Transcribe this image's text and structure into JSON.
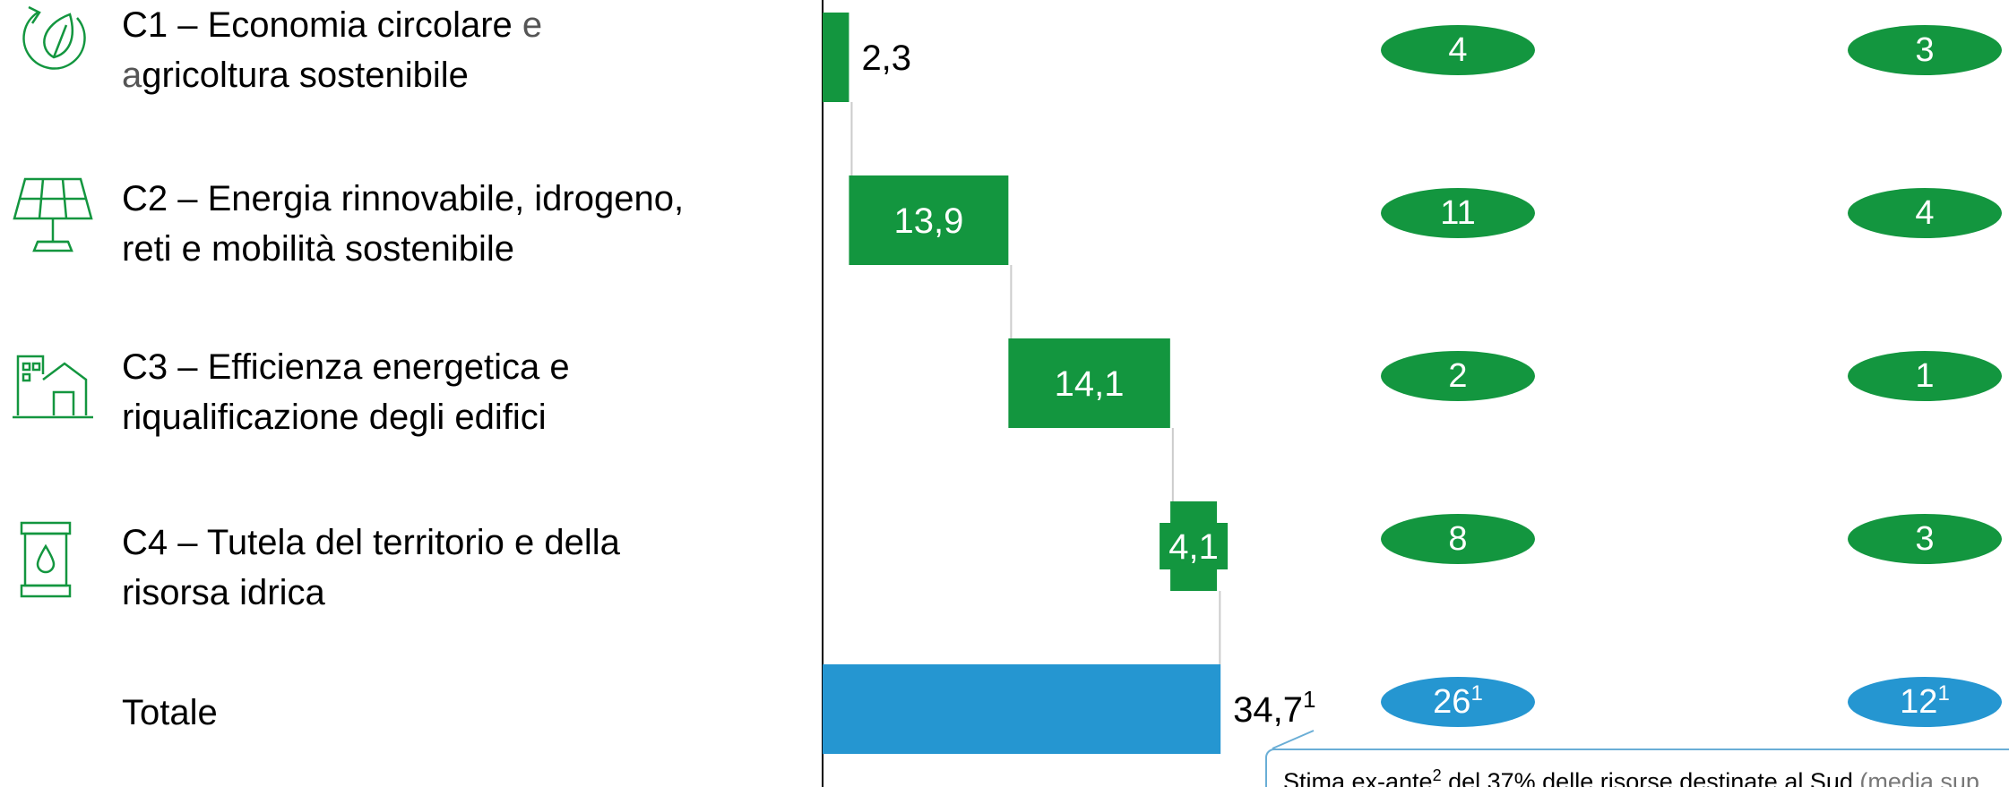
{
  "rows": [
    {
      "code": "C1",
      "sep": " – ",
      "title_part1": "Economia circolare",
      "title_light1": " e",
      "title_light2": "a",
      "title_part2": "gricoltura sostenibile",
      "icon": "recycle-leaf-icon"
    },
    {
      "code": "C2",
      "sep": " – ",
      "title_line1": "Energia rinnovabile, idrogeno,",
      "title_line2": "reti e mobilità sostenibile",
      "icon": "solar-panel-icon"
    },
    {
      "code": "C3",
      "sep": " – ",
      "title_line1": "Efficienza energetica e",
      "title_line2": "riqualificazione degli edifici",
      "icon": "building-icon"
    },
    {
      "code": "C4",
      "sep": " – ",
      "title_line1": "Tutela del territorio e della",
      "title_line2": "risorsa idrica",
      "icon": "water-drop-icon"
    },
    {
      "code": "",
      "title_line1": "Totale"
    }
  ],
  "chart_data": {
    "type": "bar",
    "subtype": "waterfall",
    "categories": [
      "C1",
      "C2",
      "C3",
      "C4",
      "Totale"
    ],
    "values": [
      2.3,
      13.9,
      14.1,
      4.1,
      34.7
    ],
    "value_labels": [
      "2,3",
      "13,9",
      "14,1",
      "4,1",
      "34,7"
    ],
    "total_label_sup": "1",
    "colors": {
      "component": "#13963f",
      "total": "#2596d1"
    },
    "col2": {
      "labels": [
        "4",
        "11",
        "2",
        "8",
        "26"
      ],
      "total_sup": "1"
    },
    "col3": {
      "labels": [
        "3",
        "4",
        "1",
        "3",
        "12"
      ],
      "total_sup": "1"
    }
  },
  "callout": {
    "text_a": "Stima ex-ante",
    "sup": "2",
    "text_b": " del 37% delle risorse destinate al Sud",
    "text_c": " (media sup"
  }
}
